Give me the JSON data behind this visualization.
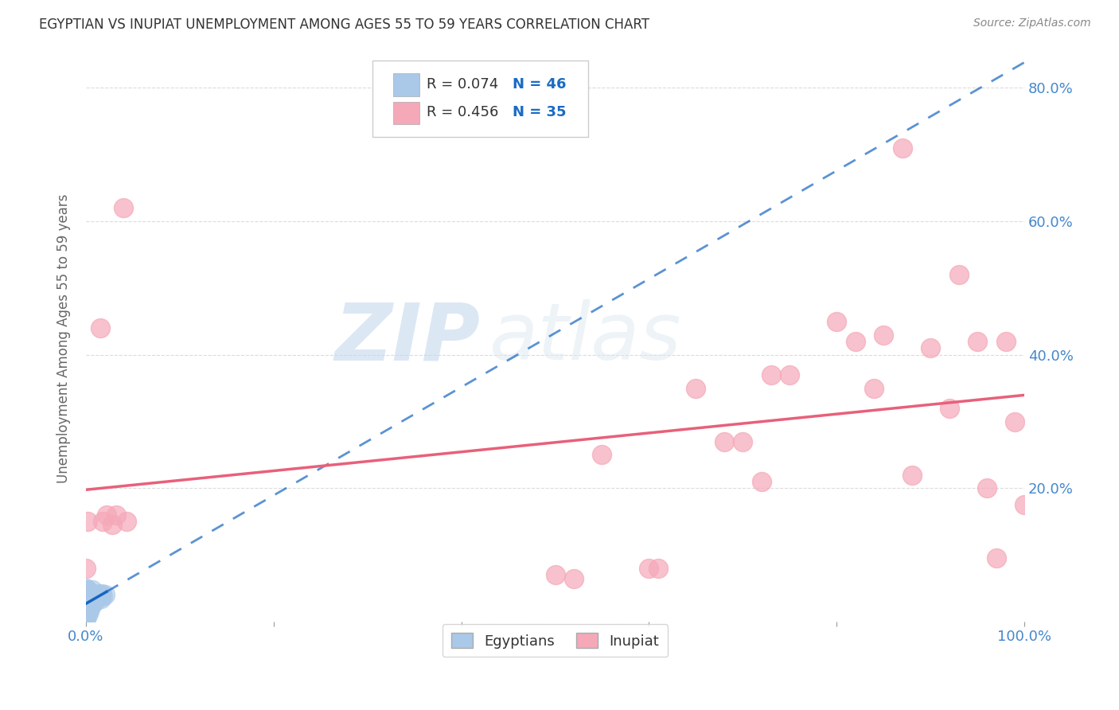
{
  "title": "EGYPTIAN VS INUPIAT UNEMPLOYMENT AMONG AGES 55 TO 59 YEARS CORRELATION CHART",
  "source": "Source: ZipAtlas.com",
  "ylabel": "Unemployment Among Ages 55 to 59 years",
  "legend_label1": "Egyptians",
  "legend_label2": "Inupiat",
  "r1": "0.074",
  "n1": "46",
  "r2": "0.456",
  "n2": "35",
  "watermark_zip": "ZIP",
  "watermark_atlas": "atlas",
  "egyptian_x": [
    0.0,
    0.0,
    0.0,
    0.0,
    0.0,
    0.0,
    0.0,
    0.0,
    0.0,
    0.0,
    0.0,
    0.001,
    0.001,
    0.001,
    0.001,
    0.001,
    0.001,
    0.001,
    0.002,
    0.002,
    0.002,
    0.002,
    0.002,
    0.003,
    0.003,
    0.003,
    0.004,
    0.004,
    0.005,
    0.005,
    0.006,
    0.006,
    0.007,
    0.007,
    0.008,
    0.009,
    0.01,
    0.011,
    0.012,
    0.013,
    0.014,
    0.015,
    0.016,
    0.017,
    0.018,
    0.02
  ],
  "egyptian_y": [
    0.005,
    0.01,
    0.015,
    0.02,
    0.025,
    0.03,
    0.035,
    0.04,
    0.045,
    0.05,
    0.008,
    0.012,
    0.018,
    0.022,
    0.028,
    0.035,
    0.04,
    0.048,
    0.01,
    0.02,
    0.03,
    0.038,
    0.048,
    0.015,
    0.025,
    0.042,
    0.02,
    0.035,
    0.025,
    0.04,
    0.025,
    0.042,
    0.03,
    0.048,
    0.035,
    0.03,
    0.035,
    0.04,
    0.038,
    0.042,
    0.038,
    0.04,
    0.035,
    0.042,
    0.038,
    0.04
  ],
  "inupiat_x": [
    0.0,
    0.002,
    0.015,
    0.018,
    0.022,
    0.028,
    0.032,
    0.04,
    0.043,
    0.5,
    0.52,
    0.55,
    0.6,
    0.61,
    0.65,
    0.68,
    0.7,
    0.72,
    0.73,
    0.75,
    0.8,
    0.82,
    0.84,
    0.85,
    0.87,
    0.88,
    0.9,
    0.92,
    0.93,
    0.95,
    0.96,
    0.97,
    0.98,
    0.99,
    1.0
  ],
  "inupiat_y": [
    0.08,
    0.15,
    0.44,
    0.15,
    0.16,
    0.145,
    0.16,
    0.62,
    0.15,
    0.07,
    0.065,
    0.25,
    0.08,
    0.08,
    0.35,
    0.27,
    0.27,
    0.21,
    0.37,
    0.37,
    0.45,
    0.42,
    0.35,
    0.43,
    0.71,
    0.22,
    0.41,
    0.32,
    0.52,
    0.42,
    0.2,
    0.095,
    0.42,
    0.3,
    0.175
  ],
  "xlim": [
    0.0,
    1.0
  ],
  "ylim": [
    0.0,
    0.85
  ],
  "yticks": [
    0.0,
    0.2,
    0.4,
    0.6,
    0.8
  ],
  "ytick_labels_right": [
    "",
    "20.0%",
    "40.0%",
    "60.0%",
    "80.0%"
  ],
  "xtick_positions": [
    0.0,
    0.2,
    0.4,
    0.6,
    0.8,
    1.0
  ],
  "xtick_labels": [
    "0.0%",
    "",
    "",
    "",
    "",
    "100.0%"
  ],
  "bg_color": "#ffffff",
  "egyptian_color": "#aac8e8",
  "inupiat_color": "#f5a8b8",
  "egyptian_line_color": "#1565c0",
  "inupiat_line_color": "#e8607a",
  "grid_color": "#cccccc",
  "title_color": "#333333",
  "axis_label_color": "#666666",
  "tick_color": "#4488cc"
}
